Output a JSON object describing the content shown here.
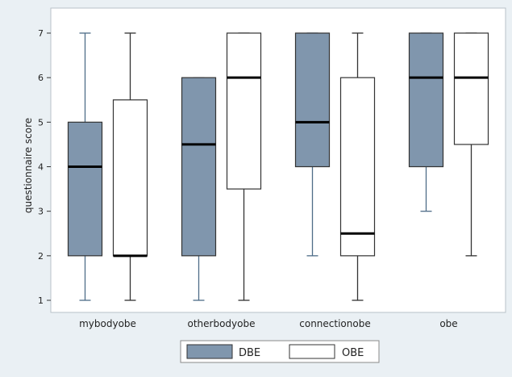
{
  "chart_data": {
    "type": "box",
    "title": "",
    "ylabel": "questionnaire score",
    "xlabel": "",
    "ylim": [
      1,
      7
    ],
    "yticks": [
      1,
      2,
      3,
      4,
      5,
      6,
      7
    ],
    "grid": false,
    "legend_position": "bottom",
    "categories": [
      "mybodyobe",
      "otherbodyobe",
      "connectionobe",
      "obe"
    ],
    "series": [
      {
        "name": "DBE",
        "fill": "#8096ad",
        "boxes": [
          {
            "min": 1,
            "q1": 2,
            "median": 4,
            "q3": 5,
            "max": 7
          },
          {
            "min": 1,
            "q1": 2,
            "median": 4.5,
            "q3": 6,
            "max": 6
          },
          {
            "min": 2,
            "q1": 4,
            "median": 5,
            "q3": 7,
            "max": 7
          },
          {
            "min": 3,
            "q1": 4,
            "median": 6,
            "q3": 7,
            "max": 7
          }
        ]
      },
      {
        "name": "OBE",
        "fill": "#ffffff",
        "boxes": [
          {
            "min": 1,
            "q1": 2,
            "median": 2,
            "q3": 5.5,
            "max": 7
          },
          {
            "min": 1,
            "q1": 3.5,
            "median": 6,
            "q3": 7,
            "max": 7
          },
          {
            "min": 1,
            "q1": 2,
            "median": 2.5,
            "q3": 6,
            "max": 7
          },
          {
            "min": 2,
            "q1": 4.5,
            "median": 6,
            "q3": 7,
            "max": 7
          }
        ]
      }
    ]
  },
  "colors": {
    "page_background": "#eaf0f4",
    "plot_background": "#ffffff",
    "dbe_whisker": "#4f6d88",
    "obe_whisker": "#333333",
    "median_line": "#000000"
  }
}
